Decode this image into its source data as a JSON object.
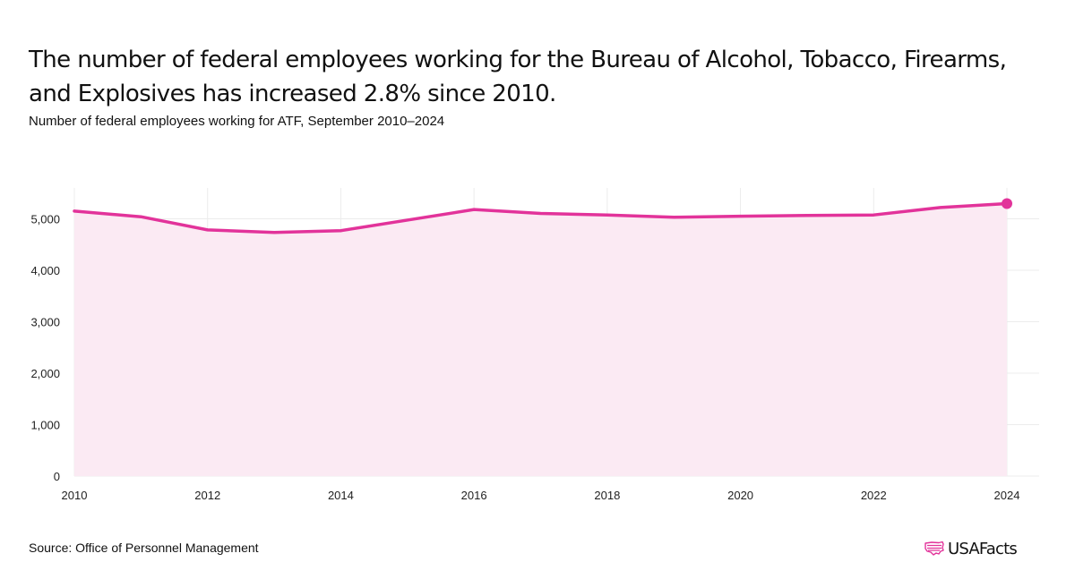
{
  "header": {
    "title": "The number of federal employees working for the Bureau of Alcohol, Tobacco, Firearms, and Explosives has increased 2.8% since 2010.",
    "subtitle": "Number of federal employees working for ATF, September 2010–2024"
  },
  "footer": {
    "source": "Source: Office of Personnel Management",
    "brand": "USAFacts",
    "brand_icon": "us-flag-map-icon"
  },
  "colors": {
    "line": "#e2339a",
    "area": "#fbeaf3",
    "grid": "#ececec"
  },
  "chart_data": {
    "type": "area",
    "x": [
      2010,
      2011,
      2012,
      2013,
      2014,
      2015,
      2016,
      2017,
      2018,
      2019,
      2020,
      2021,
      2022,
      2023,
      2024
    ],
    "series": [
      {
        "values": [
          5150,
          5040,
          4785,
          4735,
          4770,
          4975,
          5180,
          5105,
          5075,
          5030,
          5050,
          5065,
          5075,
          5220,
          5295
        ]
      }
    ],
    "xticks": [
      2010,
      2012,
      2014,
      2016,
      2018,
      2020,
      2022,
      2024
    ],
    "xtick_labels": [
      "2010",
      "2012",
      "2014",
      "2016",
      "2018",
      "2020",
      "2022",
      "2024"
    ],
    "yticks": [
      0,
      1000,
      2000,
      3000,
      4000,
      5000
    ],
    "ytick_labels": [
      "0",
      "1,000",
      "2,000",
      "3,000",
      "4,000",
      "5,000"
    ],
    "xlim": [
      2010,
      2024
    ],
    "ylim": [
      0,
      5600
    ],
    "grid": true,
    "end_marker": true,
    "xlabel": "",
    "ylabel": ""
  }
}
